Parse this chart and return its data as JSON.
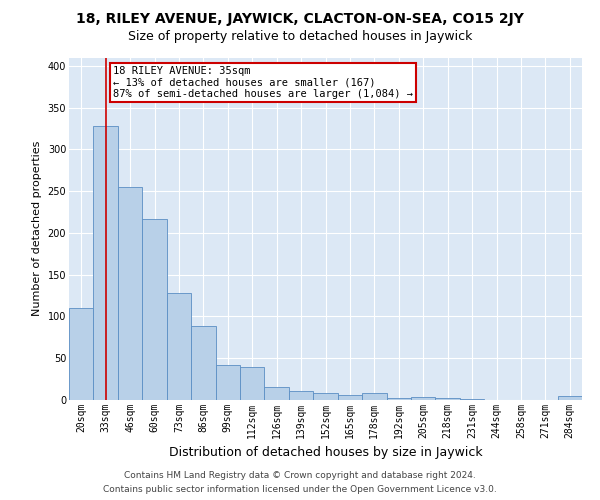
{
  "title1": "18, RILEY AVENUE, JAYWICK, CLACTON-ON-SEA, CO15 2JY",
  "title2": "Size of property relative to detached houses in Jaywick",
  "xlabel": "Distribution of detached houses by size in Jaywick",
  "ylabel": "Number of detached properties",
  "categories": [
    "20sqm",
    "33sqm",
    "46sqm",
    "60sqm",
    "73sqm",
    "86sqm",
    "99sqm",
    "112sqm",
    "126sqm",
    "139sqm",
    "152sqm",
    "165sqm",
    "178sqm",
    "192sqm",
    "205sqm",
    "218sqm",
    "231sqm",
    "244sqm",
    "258sqm",
    "271sqm",
    "284sqm"
  ],
  "values": [
    110,
    328,
    255,
    217,
    128,
    88,
    42,
    40,
    16,
    11,
    8,
    6,
    8,
    2,
    4,
    2,
    1,
    0,
    0,
    0,
    5
  ],
  "bar_color": "#b8d0e8",
  "bar_edge_color": "#5b8ec4",
  "vline_x": 1.0,
  "vline_color": "#cc0000",
  "annotation_box_text": "18 RILEY AVENUE: 35sqm\n← 13% of detached houses are smaller (167)\n87% of semi-detached houses are larger (1,084) →",
  "annotation_box_color": "#cc0000",
  "footer1": "Contains HM Land Registry data © Crown copyright and database right 2024.",
  "footer2": "Contains public sector information licensed under the Open Government Licence v3.0.",
  "ylim": [
    0,
    410
  ],
  "plot_bg_color": "#dce8f5",
  "fig_bg_color": "#ffffff",
  "grid_color": "#ffffff",
  "title1_fontsize": 10,
  "title2_fontsize": 9,
  "xlabel_fontsize": 9,
  "ylabel_fontsize": 8,
  "tick_fontsize": 7,
  "footer_fontsize": 6.5,
  "annotation_fontsize": 7.5
}
